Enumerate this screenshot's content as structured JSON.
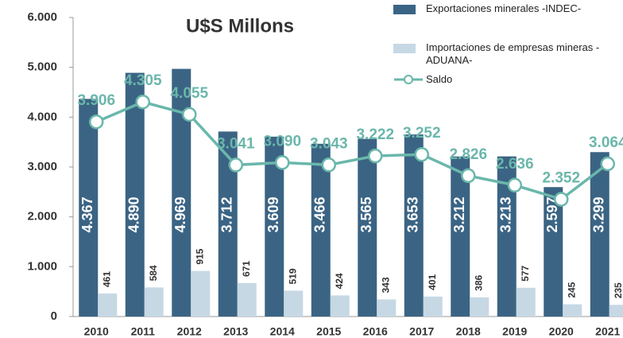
{
  "chart_data": {
    "type": "bar",
    "title": "U$S Millons",
    "categories": [
      "2010",
      "2011",
      "2012",
      "2013",
      "2014",
      "2015",
      "2016",
      "2017",
      "2018",
      "2019",
      "2020",
      "2021"
    ],
    "series": [
      {
        "name": "Exportaciones minerales -INDEC-",
        "color": "#3b6484",
        "type": "bar",
        "values": [
          4367,
          4890,
          4969,
          3712,
          3609,
          3466,
          3565,
          3653,
          3212,
          3213,
          2597,
          3299
        ],
        "value_labels": [
          "4.367",
          "4.890",
          "4.969",
          "3.712",
          "3.609",
          "3.466",
          "3.565",
          "3.653",
          "3.212",
          "3.213",
          "2.597",
          "3.299"
        ]
      },
      {
        "name": "Importaciones de empresas mineras -ADUANA-",
        "color": "#c6d8e4",
        "type": "bar",
        "values": [
          461,
          584,
          915,
          671,
          519,
          424,
          343,
          401,
          386,
          577,
          245,
          235
        ]
      },
      {
        "name": "Saldo",
        "color": "#6ab7ab",
        "type": "line",
        "values": [
          3906,
          4305,
          4055,
          3041,
          3090,
          3043,
          3222,
          3252,
          2826,
          2636,
          2352,
          3064
        ],
        "value_labels": [
          "3.906",
          "4.305",
          "4.055",
          "3.041",
          "3.090",
          "3.043",
          "3.222",
          "3.252",
          "2.826",
          "2.636",
          "2.352",
          "3.064"
        ]
      }
    ],
    "ylim": [
      0,
      6000
    ],
    "yticks": [
      0,
      {
        "value": 1000,
        "label": "1.000"
      },
      {
        "value": 2000,
        "label": "2.000"
      },
      {
        "value": 3000,
        "label": "3.000"
      },
      {
        "value": 4000,
        "label": "4.000"
      },
      {
        "value": 5000,
        "label": "5.000"
      },
      {
        "value": 6000,
        "label": "6.000"
      }
    ]
  }
}
